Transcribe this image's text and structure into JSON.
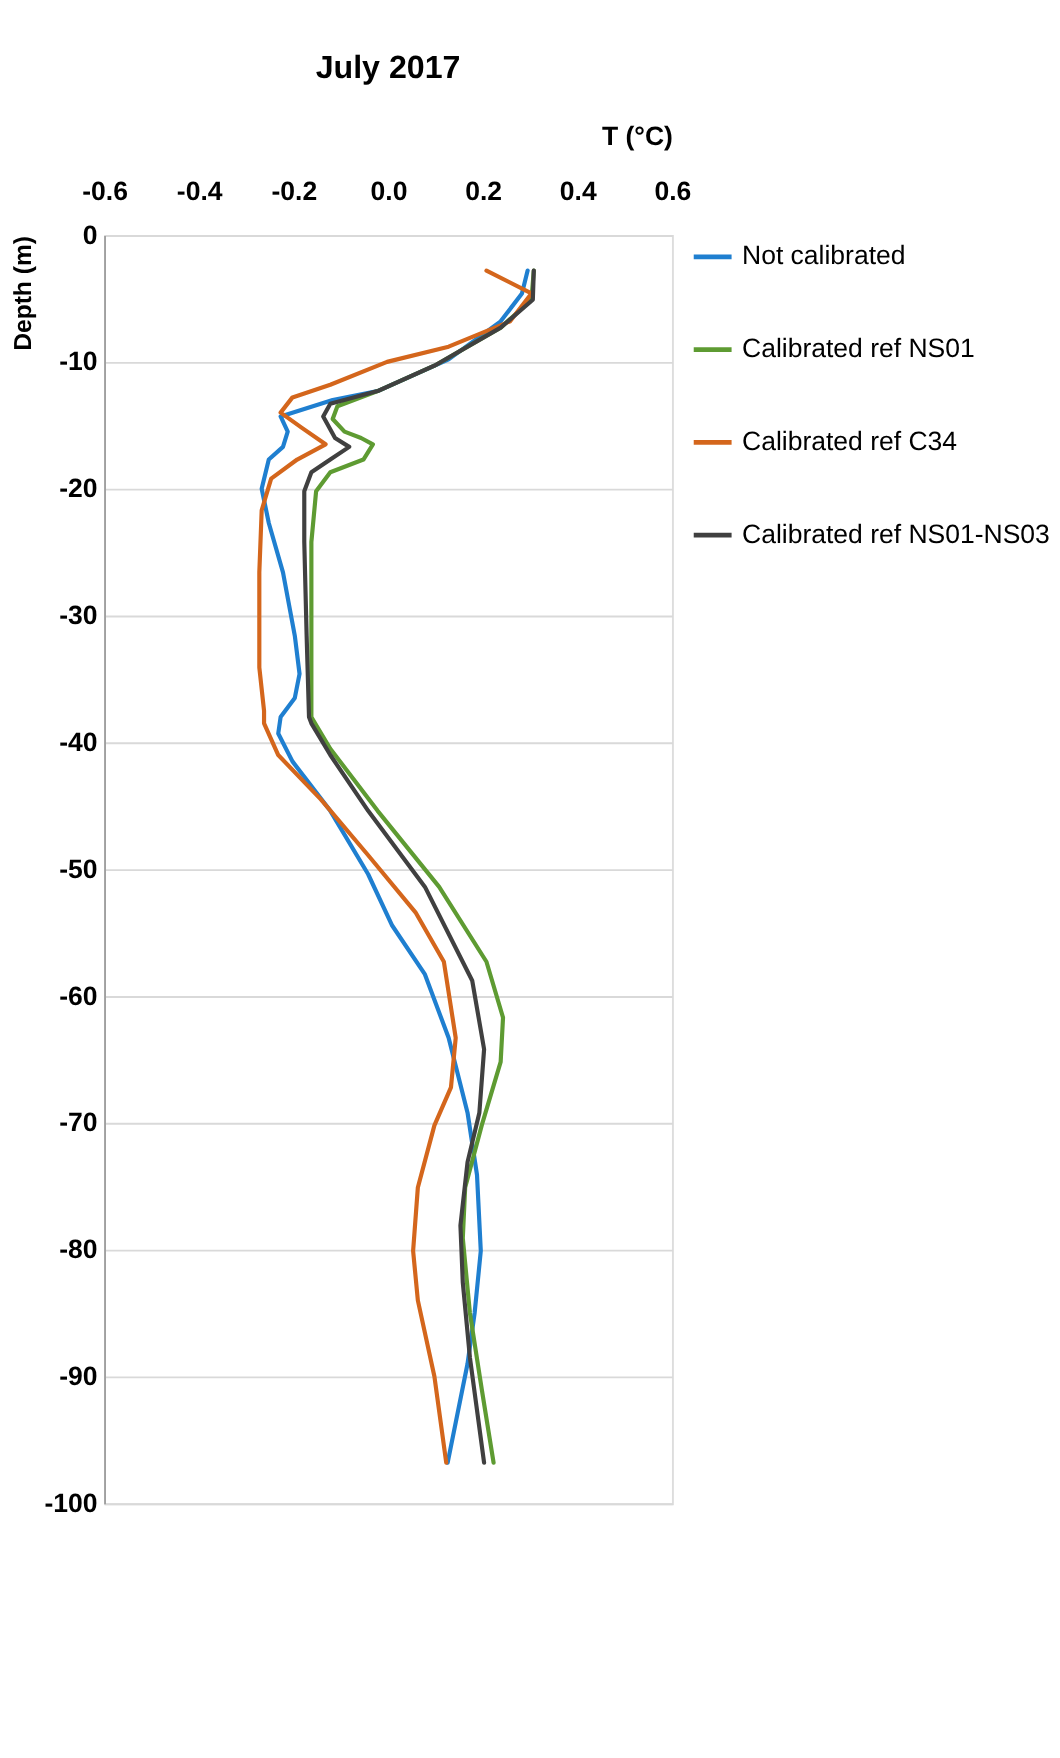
{
  "chart_data": {
    "type": "line",
    "title": "July 2017",
    "xlabel": "T (°C)",
    "ylabel": "Depth (m)",
    "xlim": [
      -0.6,
      0.6
    ],
    "xticks": [
      {
        "value": -0.6,
        "label": "-0.6"
      },
      {
        "value": -0.4,
        "label": "-0.4"
      },
      {
        "value": -0.2,
        "label": "-0.2"
      },
      {
        "value": 0,
        "label": "0.0"
      },
      {
        "value": 0.2,
        "label": "0.2"
      },
      {
        "value": 0.4,
        "label": "0.4"
      },
      {
        "value": 0.6,
        "label": "0.6"
      }
    ],
    "ylim": [
      -100,
      0
    ],
    "yticks": [
      0,
      -10,
      -20,
      -30,
      -40,
      -50,
      -60,
      -70,
      -80,
      -90,
      -100
    ],
    "grid": "y",
    "legend": "right",
    "line_style": "solid",
    "marker": "none",
    "series": [
      {
        "name": "Not calibrated",
        "color": "#1f7fd0",
        "x": [
          0.295,
          0.283,
          0.238,
          0.128,
          -0.022,
          -0.117,
          -0.227,
          -0.212,
          -0.222,
          -0.252,
          -0.267,
          -0.252,
          -0.222,
          -0.197,
          -0.187,
          -0.197,
          -0.227,
          -0.232,
          -0.202,
          -0.122,
          -0.042,
          0.008,
          0.078,
          0.128,
          0.168,
          0.188,
          0.196,
          0.183,
          0.168,
          0.126
        ],
        "values": [
          -2.8,
          -4.6,
          -6.8,
          -9.8,
          -12.3,
          -13.0,
          -14.3,
          -15.5,
          -16.7,
          -17.7,
          -20.0,
          -22.7,
          -26.6,
          -31.6,
          -34.6,
          -36.5,
          -38.0,
          -39.3,
          -41.5,
          -45.4,
          -50.4,
          -54.4,
          -58.3,
          -63.3,
          -69.2,
          -74.1,
          -80.1,
          -85.0,
          -89.0,
          -96.8
        ]
      },
      {
        "name": "Calibrated ref NS01",
        "color": "#5e9b32",
        "x": [
          0.308,
          0.303,
          0.238,
          0.098,
          -0.022,
          -0.107,
          -0.117,
          -0.092,
          -0.057,
          -0.032,
          -0.052,
          -0.122,
          -0.152,
          -0.162,
          -0.162,
          -0.162,
          -0.122,
          -0.022,
          0.108,
          0.208,
          0.243,
          0.238,
          0.198,
          0.163,
          0.158,
          0.173,
          0.198,
          0.223
        ],
        "values": [
          -2.8,
          -5.1,
          -7.3,
          -10.3,
          -12.3,
          -13.5,
          -14.5,
          -15.5,
          -16.0,
          -16.5,
          -17.7,
          -18.7,
          -20.2,
          -24.2,
          -31.6,
          -38.0,
          -40.5,
          -45.4,
          -51.4,
          -57.3,
          -61.7,
          -65.2,
          -70.2,
          -75.1,
          -79.1,
          -85.0,
          -91.0,
          -96.8
        ]
      },
      {
        "name": "Calibrated ref C34",
        "color": "#d4661c",
        "x": [
          0.208,
          0.303,
          0.258,
          0.128,
          -0.002,
          -0.122,
          -0.202,
          -0.227,
          -0.182,
          -0.132,
          -0.192,
          -0.247,
          -0.267,
          -0.272,
          -0.272,
          -0.262,
          -0.262,
          -0.232,
          -0.142,
          -0.042,
          0.058,
          0.118,
          0.143,
          0.133,
          0.098,
          0.063,
          0.053,
          0.063,
          0.098,
          0.123
        ],
        "values": [
          -2.8,
          -4.6,
          -6.8,
          -8.8,
          -10.0,
          -11.8,
          -12.8,
          -14.0,
          -15.2,
          -16.5,
          -17.7,
          -19.2,
          -21.7,
          -26.6,
          -34.1,
          -37.5,
          -38.5,
          -41.0,
          -44.5,
          -48.9,
          -53.4,
          -57.3,
          -63.3,
          -67.2,
          -70.2,
          -75.1,
          -80.1,
          -84.0,
          -90.0,
          -96.8
        ]
      },
      {
        "name": "Calibrated ref NS01-NS03",
        "color": "#404040",
        "x": [
          0.308,
          0.306,
          0.238,
          0.098,
          -0.022,
          -0.122,
          -0.137,
          -0.112,
          -0.082,
          -0.122,
          -0.162,
          -0.177,
          -0.177,
          -0.172,
          -0.167,
          -0.162,
          -0.122,
          -0.042,
          0.078,
          0.178,
          0.203,
          0.193,
          0.168,
          0.153,
          0.158,
          0.173,
          0.203
        ],
        "values": [
          -2.8,
          -5.1,
          -7.3,
          -10.3,
          -12.3,
          -13.3,
          -14.3,
          -16.0,
          -16.7,
          -17.7,
          -18.7,
          -20.2,
          -24.2,
          -31.6,
          -38.0,
          -38.5,
          -41.0,
          -45.4,
          -51.4,
          -58.8,
          -64.2,
          -69.2,
          -73.1,
          -78.1,
          -82.6,
          -88.5,
          -96.8
        ]
      }
    ]
  }
}
